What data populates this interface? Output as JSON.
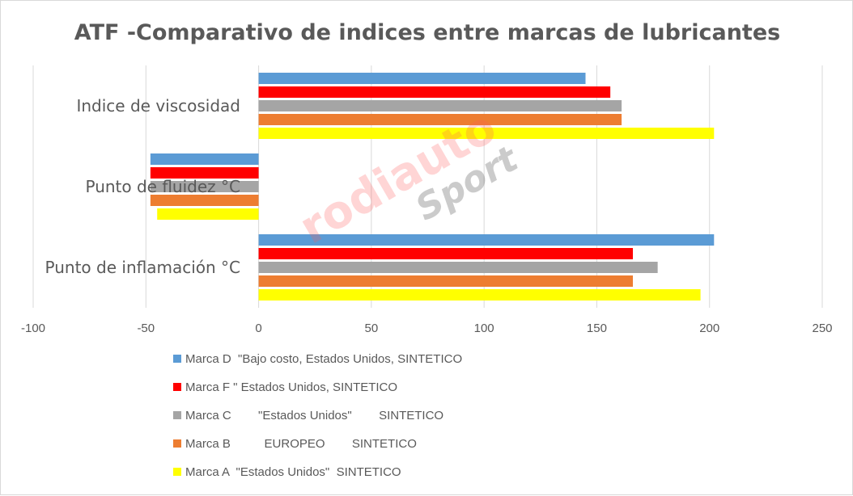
{
  "chart_data": {
    "type": "bar",
    "orientation": "horizontal",
    "title": "ATF -Comparativo de indices entre marcas de lubricantes",
    "categories": [
      "Indice de viscosidad",
      "Punto de fluidez °C",
      "Punto de inflamación °C"
    ],
    "series": [
      {
        "name": "Marca D  \"Bajo costo, Estados Unidos, SINTETICO",
        "color": "#5b9bd5",
        "values": [
          145,
          -48,
          202
        ]
      },
      {
        "name": "Marca F \" Estados Unidos, SINTETICO",
        "color": "#ff0000",
        "values": [
          156,
          -48,
          166
        ]
      },
      {
        "name": "Marca C        \"Estados Unidos\"        SINTETICO",
        "color": "#a5a5a5",
        "values": [
          161,
          -48,
          177
        ]
      },
      {
        "name": "Marca B          EUROPEO        SINTETICO",
        "color": "#ed7d31",
        "values": [
          161,
          -48,
          166
        ]
      },
      {
        "name": "Marca A  \"Estados Unidos\"  SINTETICO",
        "color": "#ffff00",
        "values": [
          202,
          -45,
          196
        ]
      }
    ],
    "xlim": [
      -100,
      250
    ],
    "xticks": [
      -100,
      -50,
      0,
      50,
      100,
      150,
      200,
      250
    ],
    "grid": "vertical",
    "legend": "bottom",
    "xlabel": "",
    "ylabel": ""
  },
  "watermark": {
    "text1": "rodiauto",
    "text2": "Sport"
  }
}
